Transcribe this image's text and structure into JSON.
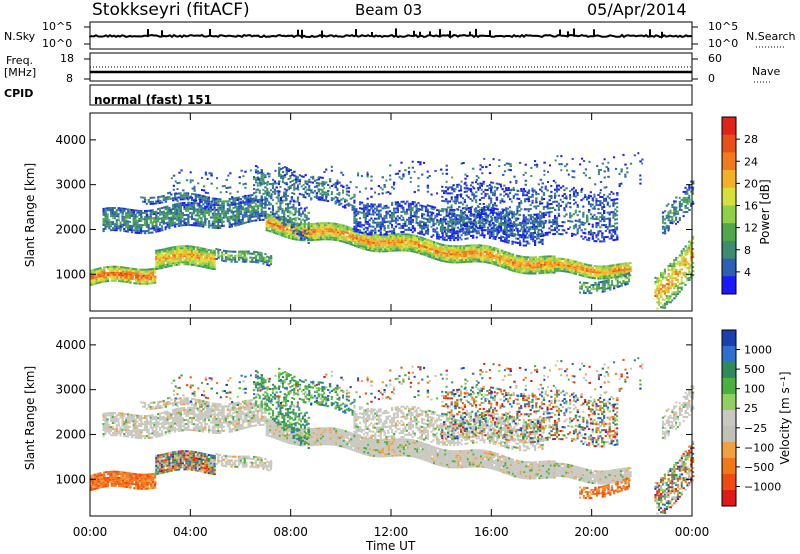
{
  "header": {
    "station": "Stokkseyri (fitACF)",
    "beam": "Beam 03",
    "date": "05/Apr/2014"
  },
  "top_panels": {
    "nsky_label": "N.Sky",
    "nsky_ticks": [
      "10^5",
      "10^0"
    ],
    "nsearch_label": "N.Search",
    "nsearch_ticks": [
      "10^5",
      "10^0"
    ],
    "freq_label": "Freq.",
    "freq_unit": "[MHz]",
    "freq_ticks": [
      "18",
      "8"
    ],
    "nave_label": "Nave",
    "nave_ticks": [
      "60",
      "0"
    ],
    "cpid_label": "CPID",
    "cpid_value": "normal (fast) 151"
  },
  "chart_data": [
    {
      "type": "heatmap",
      "name": "power",
      "ylabel": "Slant Range [km]",
      "ylim": [
        180,
        4600
      ],
      "yticks": [
        "1000",
        "2000",
        "3000",
        "4000"
      ],
      "xlim_hours": [
        0,
        24
      ],
      "colorbar": {
        "label": "Power [dB]",
        "ticks": [
          "4",
          "8",
          "12",
          "16",
          "20",
          "24",
          "28"
        ],
        "colors": [
          "#1a1aff",
          "#2d5fb4",
          "#3c8c6e",
          "#4fa84a",
          "#8fd04a",
          "#d7e03a",
          "#f5b02a",
          "#f07a1c",
          "#e8501a",
          "#e02418"
        ]
      }
    },
    {
      "type": "heatmap",
      "name": "velocity",
      "ylabel": "Slant Range [km]",
      "ylim": [
        180,
        4600
      ],
      "yticks": [
        "1000",
        "2000",
        "3000",
        "4000"
      ],
      "xlim_hours": [
        0,
        24
      ],
      "colorbar": {
        "label": "Velocity [m s⁻¹]",
        "ticks": [
          "1000",
          "500",
          "100",
          "25",
          "−25",
          "−100",
          "−500",
          "−1000"
        ],
        "colors": [
          "#1a3fb0",
          "#2f6fd0",
          "#2f8a5a",
          "#4cb040",
          "#8fd060",
          "#c8c8c0",
          "#c0bfb8",
          "#f0a040",
          "#f07818",
          "#f04a10",
          "#e01818"
        ]
      }
    }
  ],
  "x_axis": {
    "ticks": [
      "00:00",
      "04:00",
      "08:00",
      "12:00",
      "16:00",
      "20:00",
      "00:00"
    ],
    "label": "Time UT"
  }
}
